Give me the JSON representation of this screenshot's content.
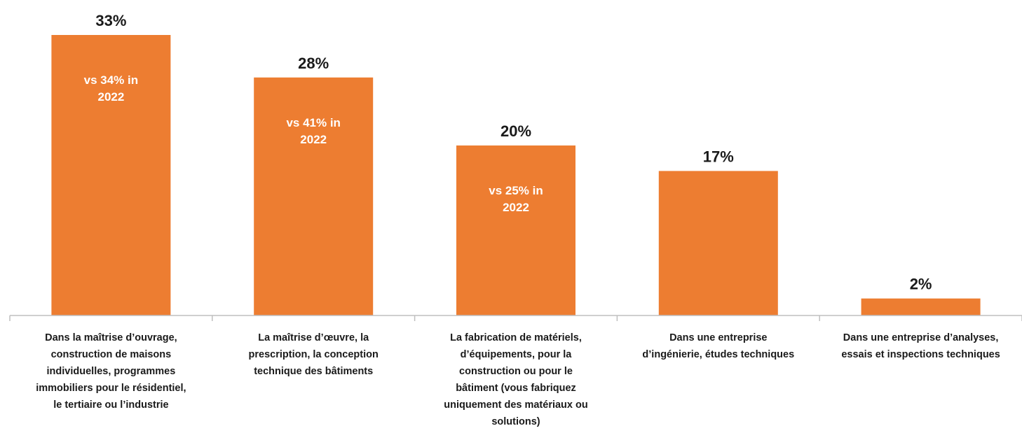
{
  "chart_data": {
    "type": "bar",
    "categories": [
      [
        "Dans la maîtrise d’ouvrage,",
        "construction de maisons",
        "individuelles, programmes",
        "immobiliers pour le résidentiel,",
        "le tertiaire ou l’industrie"
      ],
      [
        "La maîtrise d’œuvre, la",
        "prescription, la conception",
        "technique des bâtiments"
      ],
      [
        "La fabrication de matériels,",
        "d’équipements, pour la",
        "construction ou pour le",
        "bâtiment (vous fabriquez",
        "uniquement des matériaux ou",
        "solutions)"
      ],
      [
        "Dans une entreprise",
        "d’ingénierie, études techniques"
      ],
      [
        "Dans une entreprise d’analyses,",
        "essais et inspections techniques"
      ]
    ],
    "values": [
      33,
      28,
      20,
      17,
      2
    ],
    "value_labels": [
      "33%",
      "28%",
      "20%",
      "17%",
      "2%"
    ],
    "in_bar_labels": [
      [
        "vs 34% in",
        "2022"
      ],
      [
        "vs 41% in",
        "2022"
      ],
      [
        "vs 25% in",
        "2022"
      ],
      [],
      []
    ],
    "ylim": [
      0,
      33
    ],
    "grid": false,
    "bar_color": "#ED7D31",
    "axis_color": "#bfbfbf"
  }
}
